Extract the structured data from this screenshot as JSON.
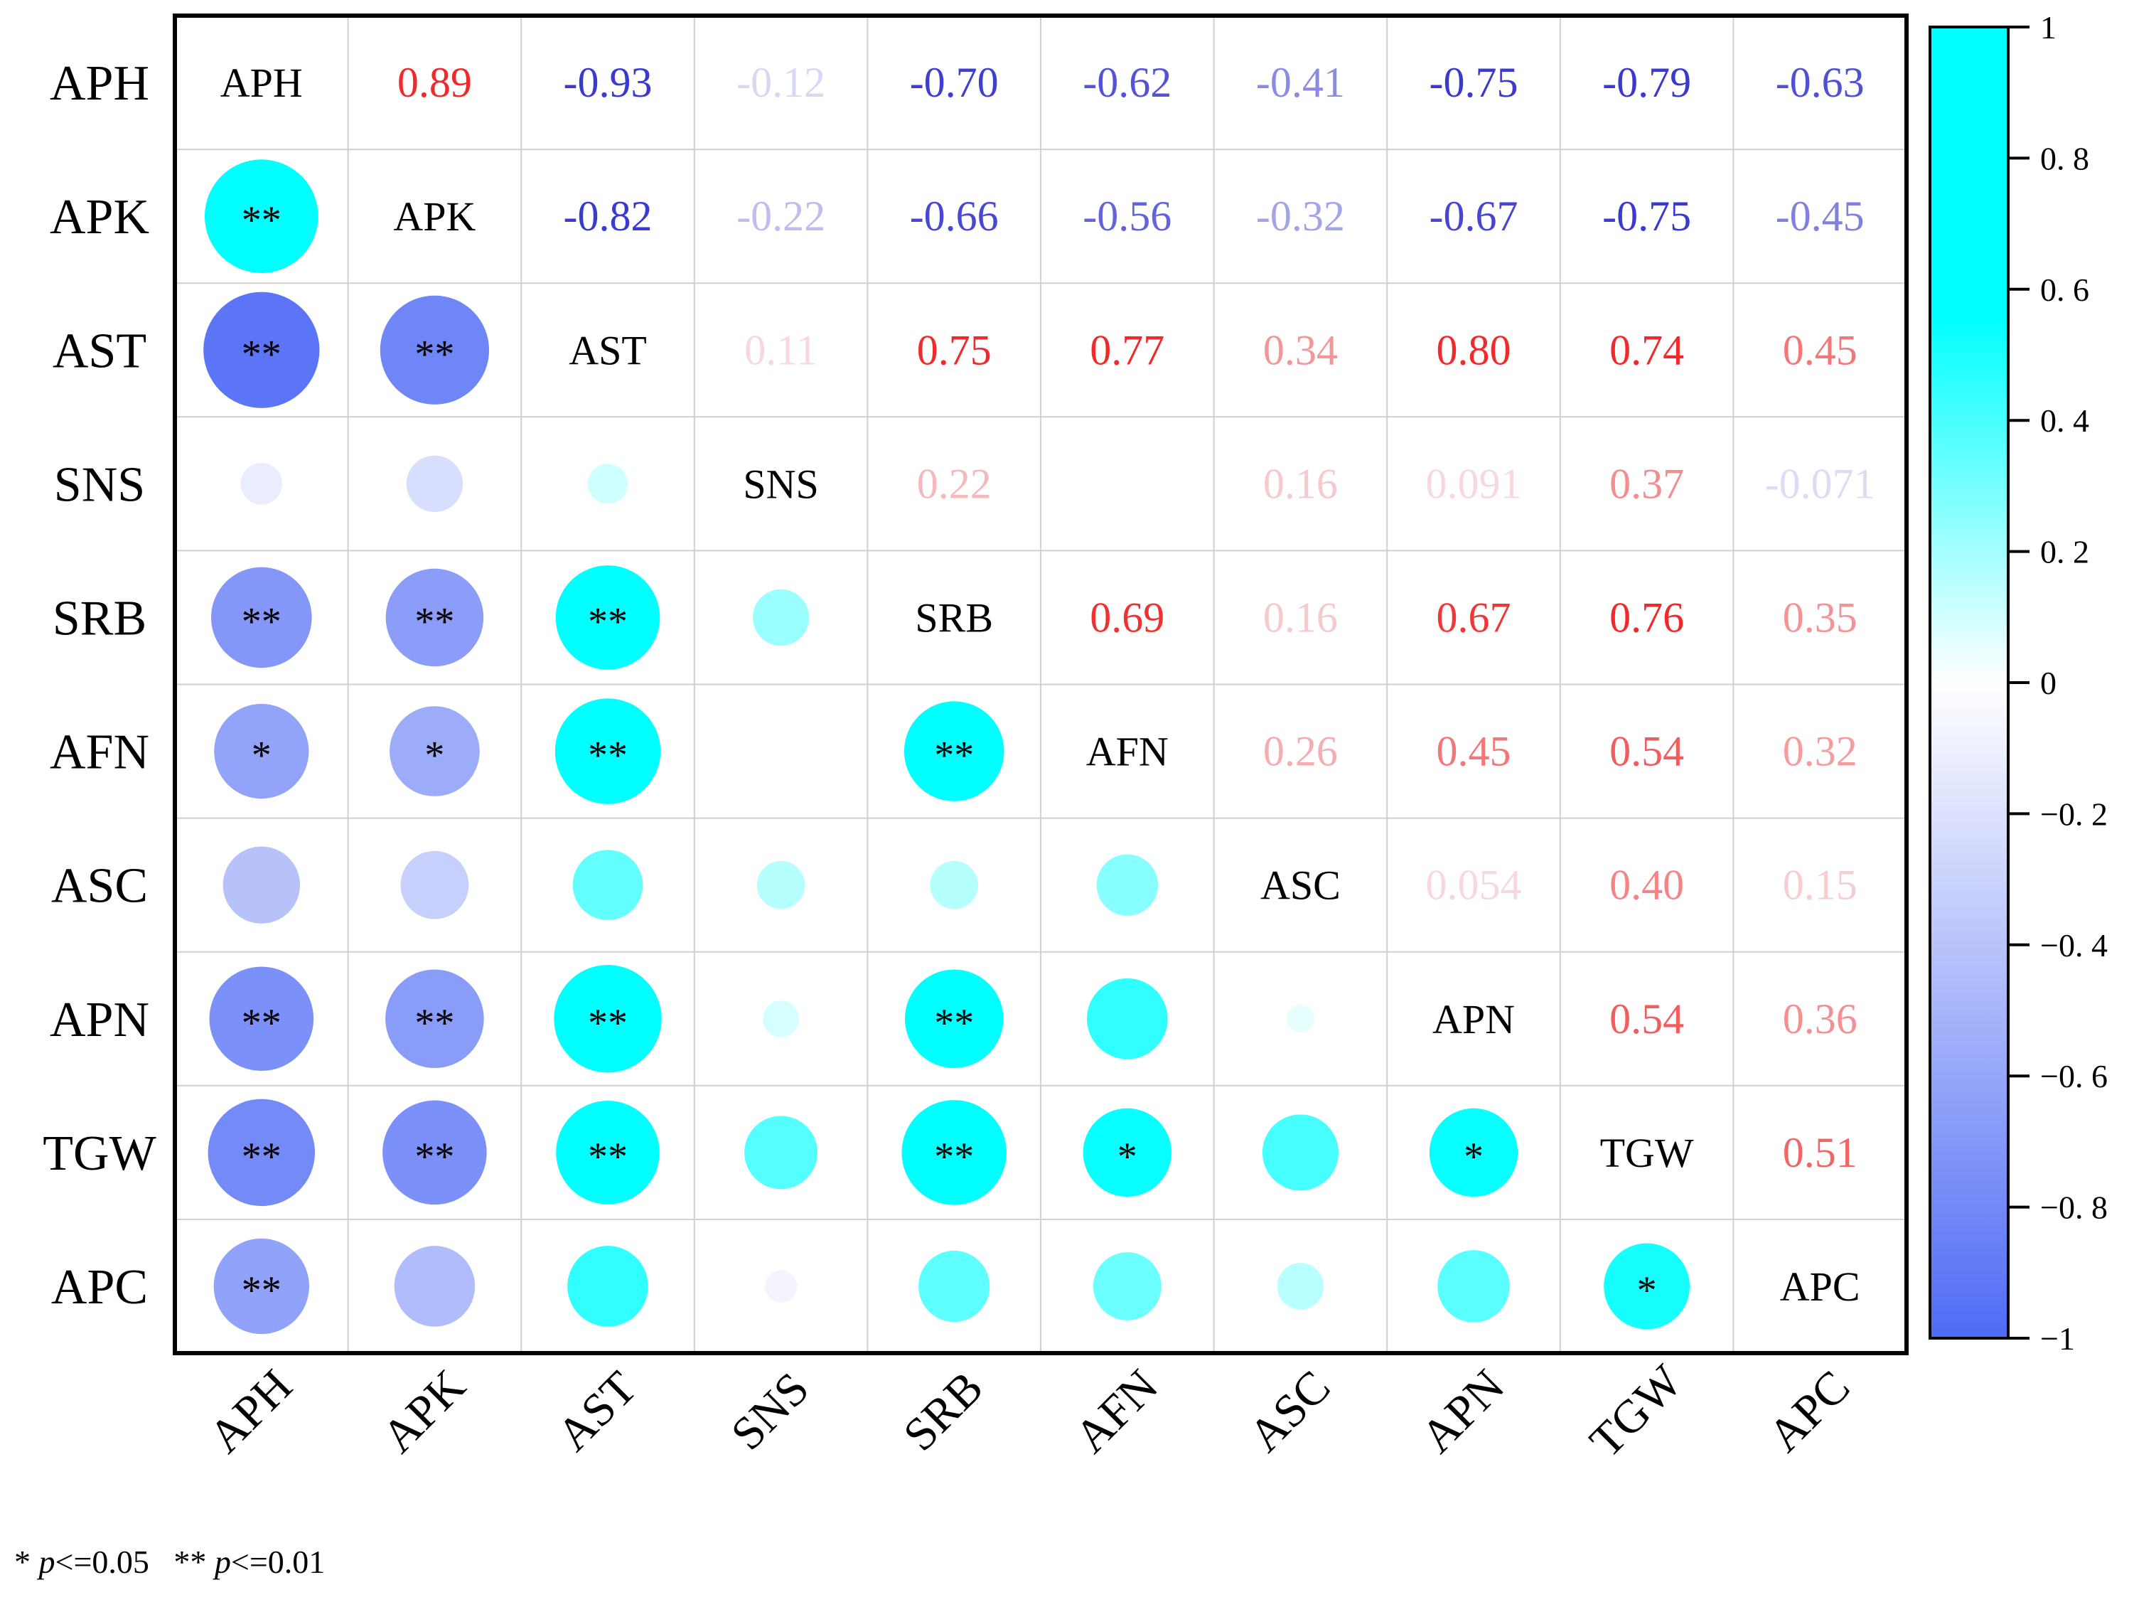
{
  "chart_data": {
    "type": "heatmap",
    "subtype": "correlation-matrix",
    "variables": [
      "APH",
      "APK",
      "AST",
      "SNS",
      "SRB",
      "AFN",
      "ASC",
      "APN",
      "TGW",
      "APC"
    ],
    "upper_values": [
      [
        "APH",
        "0.89",
        "-0.93",
        "-0.12",
        "-0.70",
        "-0.62",
        "-0.41",
        "-0.75",
        "-0.79",
        "-0.63"
      ],
      [
        null,
        "APK",
        "-0.82",
        "-0.22",
        "-0.66",
        "-0.56",
        "-0.32",
        "-0.67",
        "-0.75",
        "-0.45"
      ],
      [
        null,
        null,
        "AST",
        "0.11",
        "0.75",
        "0.77",
        "0.34",
        "0.80",
        "0.74",
        "0.45"
      ],
      [
        null,
        null,
        null,
        "SNS",
        "0.22",
        "",
        "0.16",
        "0.091",
        "0.37",
        "-0.071"
      ],
      [
        null,
        null,
        null,
        null,
        "SRB",
        "0.69",
        "0.16",
        "0.67",
        "0.76",
        "0.35"
      ],
      [
        null,
        null,
        null,
        null,
        null,
        "AFN",
        "0.26",
        "0.45",
        "0.54",
        "0.32"
      ],
      [
        null,
        null,
        null,
        null,
        null,
        null,
        "ASC",
        "0.054",
        "0.40",
        "0.15"
      ],
      [
        null,
        null,
        null,
        null,
        null,
        null,
        null,
        "APN",
        "0.54",
        "0.36"
      ],
      [
        null,
        null,
        null,
        null,
        null,
        null,
        null,
        null,
        "TGW",
        "0.51"
      ],
      [
        null,
        null,
        null,
        null,
        null,
        null,
        null,
        null,
        null,
        "APC"
      ]
    ],
    "circle_values": [
      [
        null,
        null,
        null,
        null,
        null,
        null,
        null,
        null,
        null,
        null
      ],
      [
        0.89,
        null,
        null,
        null,
        null,
        null,
        null,
        null,
        null,
        null
      ],
      [
        -0.93,
        -0.82,
        null,
        null,
        null,
        null,
        null,
        null,
        null,
        null
      ],
      [
        -0.12,
        -0.22,
        0.11,
        null,
        null,
        null,
        null,
        null,
        null,
        null
      ],
      [
        -0.7,
        -0.66,
        0.75,
        0.22,
        null,
        null,
        null,
        null,
        null,
        null
      ],
      [
        -0.62,
        -0.56,
        0.77,
        0.0,
        0.69,
        null,
        null,
        null,
        null,
        null
      ],
      [
        -0.41,
        -0.32,
        0.34,
        0.16,
        0.16,
        0.26,
        null,
        null,
        null,
        null
      ],
      [
        -0.75,
        -0.67,
        0.8,
        0.091,
        0.67,
        0.45,
        0.054,
        null,
        null,
        null
      ],
      [
        -0.79,
        -0.75,
        0.74,
        0.37,
        0.76,
        0.54,
        0.4,
        0.54,
        null,
        null
      ],
      [
        -0.63,
        -0.45,
        0.45,
        -0.071,
        0.35,
        0.32,
        0.15,
        0.36,
        0.51,
        null
      ]
    ],
    "significance": [
      [
        "",
        "",
        "",
        "",
        "",
        "",
        "",
        "",
        "",
        ""
      ],
      [
        "**",
        "",
        "",
        "",
        "",
        "",
        "",
        "",
        "",
        ""
      ],
      [
        "**",
        "**",
        "",
        "",
        "",
        "",
        "",
        "",
        "",
        ""
      ],
      [
        "",
        "",
        "",
        "",
        "",
        "",
        "",
        "",
        "",
        ""
      ],
      [
        "**",
        "**",
        "**",
        "",
        "",
        "",
        "",
        "",
        "",
        ""
      ],
      [
        "*",
        "*",
        "**",
        "",
        "**",
        "",
        "",
        "",
        "",
        ""
      ],
      [
        "",
        "",
        "",
        "",
        "",
        "",
        "",
        "",
        "",
        ""
      ],
      [
        "**",
        "**",
        "**",
        "",
        "**",
        "",
        "",
        "",
        "",
        ""
      ],
      [
        "**",
        "**",
        "**",
        "",
        "**",
        "*",
        "",
        "*",
        "",
        ""
      ],
      [
        "**",
        "",
        "",
        "",
        "",
        "",
        "",
        "",
        "*",
        ""
      ]
    ],
    "colorbar": {
      "range": [
        -1,
        1
      ],
      "ticks": [
        "1",
        "0. 8",
        "0. 6",
        "0. 4",
        "0. 2",
        "0",
        "−0. 2",
        "−0. 4",
        "−0. 6",
        "−0. 8",
        "−1"
      ],
      "colors": {
        "negative": "#4F6BF5",
        "zero": "#FFFFFF",
        "positive": "#00FFFF",
        "positive_text": "#F02A2A",
        "negative_text": "#3A3AD0"
      }
    },
    "significance_legend": {
      "star1": "*",
      "p1": "p",
      "le1": "<=0.05",
      "star2": "**",
      "p2": "p",
      "le2": "<=0.01"
    }
  }
}
